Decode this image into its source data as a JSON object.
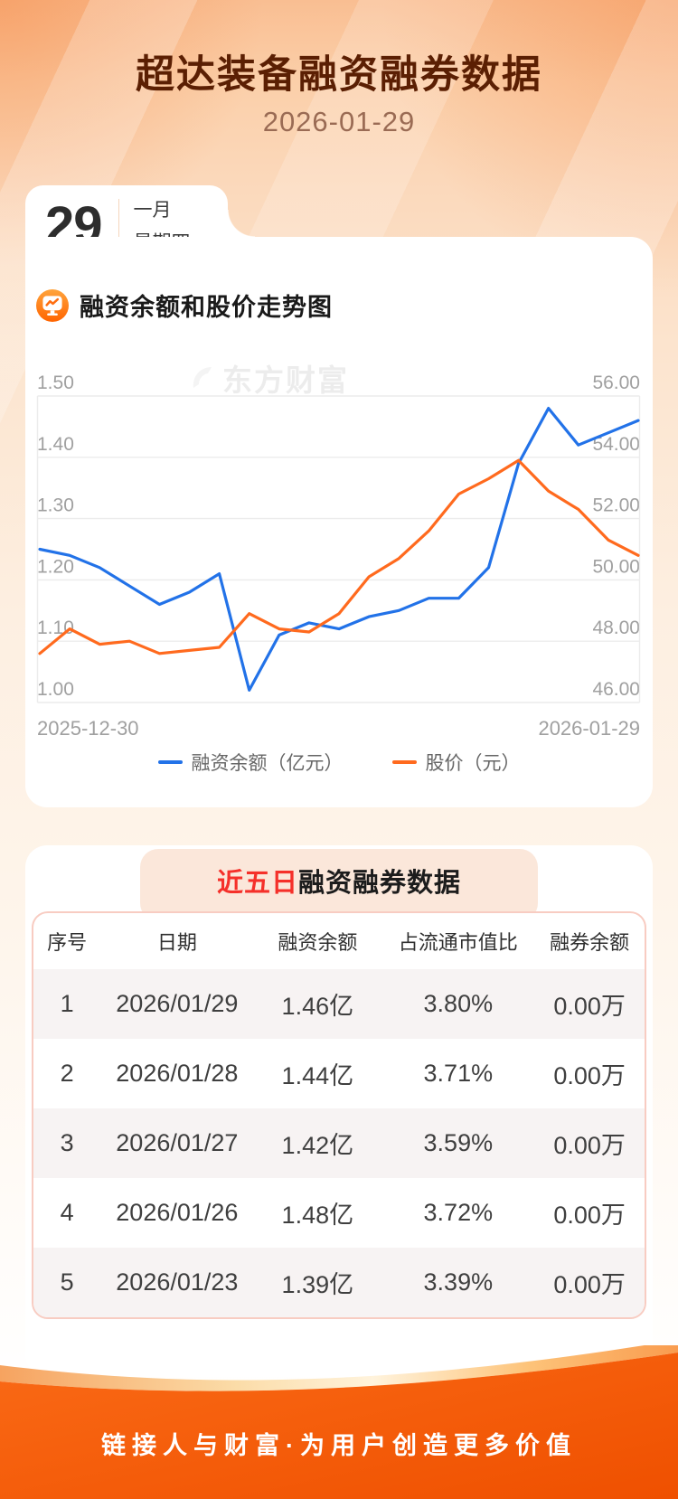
{
  "page": {
    "title": "超达装备融资融券数据",
    "date": "2026-01-29"
  },
  "calendar": {
    "day": "29",
    "month": "一月",
    "weekday": "星期四"
  },
  "branding": {
    "watermark": "东方财富"
  },
  "chart_section": {
    "title": "融资余额和股价走势图"
  },
  "chart_data": {
    "type": "line",
    "title": "融资余额和股价走势图",
    "x_start_label": "2025-12-30",
    "x_end_label": "2026-01-29",
    "grid": true,
    "legend_position": "bottom",
    "left_axis": {
      "min": 1.0,
      "max": 1.5,
      "ticks": [
        "1.50",
        "1.40",
        "1.30",
        "1.20",
        "1.10",
        "1.00"
      ]
    },
    "right_axis": {
      "min": 46,
      "max": 56,
      "ticks": [
        "56.00",
        "54.00",
        "52.00",
        "50.00",
        "48.00",
        "46.00"
      ]
    },
    "series": [
      {
        "name": "融资余额（亿元）",
        "axis": "left",
        "color": "#2272E8",
        "values": [
          1.25,
          1.24,
          1.22,
          1.19,
          1.16,
          1.18,
          1.21,
          1.02,
          1.11,
          1.13,
          1.12,
          1.14,
          1.15,
          1.17,
          1.17,
          1.22,
          1.39,
          1.48,
          1.42,
          1.44,
          1.46
        ]
      },
      {
        "name": "股价（元）",
        "axis": "right",
        "color": "#FF6A1E",
        "values": [
          47.6,
          48.4,
          47.9,
          48.0,
          47.6,
          47.7,
          47.8,
          48.9,
          48.4,
          48.3,
          48.9,
          50.1,
          50.7,
          51.6,
          52.8,
          53.3,
          53.9,
          52.9,
          52.3,
          51.3,
          50.8
        ]
      }
    ]
  },
  "table_section": {
    "title_highlight": "近五日",
    "title_rest": "融资融券数据",
    "columns": [
      "序号",
      "日期",
      "融资余额",
      "占流通市值比",
      "融券余额"
    ],
    "rows": [
      [
        "1",
        "2026/01/29",
        "1.46亿",
        "3.80%",
        "0.00万"
      ],
      [
        "2",
        "2026/01/28",
        "1.44亿",
        "3.71%",
        "0.00万"
      ],
      [
        "3",
        "2026/01/27",
        "1.42亿",
        "3.59%",
        "0.00万"
      ],
      [
        "4",
        "2026/01/26",
        "1.48亿",
        "3.72%",
        "0.00万"
      ],
      [
        "5",
        "2026/01/23",
        "1.39亿",
        "3.39%",
        "0.00万"
      ]
    ]
  },
  "footer": {
    "slogan": "链接人与财富·为用户创造更多价值"
  },
  "colors": {
    "accent_orange": "#FF6A1E",
    "line_blue": "#2272E8",
    "title_brown": "#5B1F03",
    "highlight_red": "#F5302A",
    "grid_gray": "#ECECEC",
    "axis_label_gray": "#A0A0A0"
  }
}
